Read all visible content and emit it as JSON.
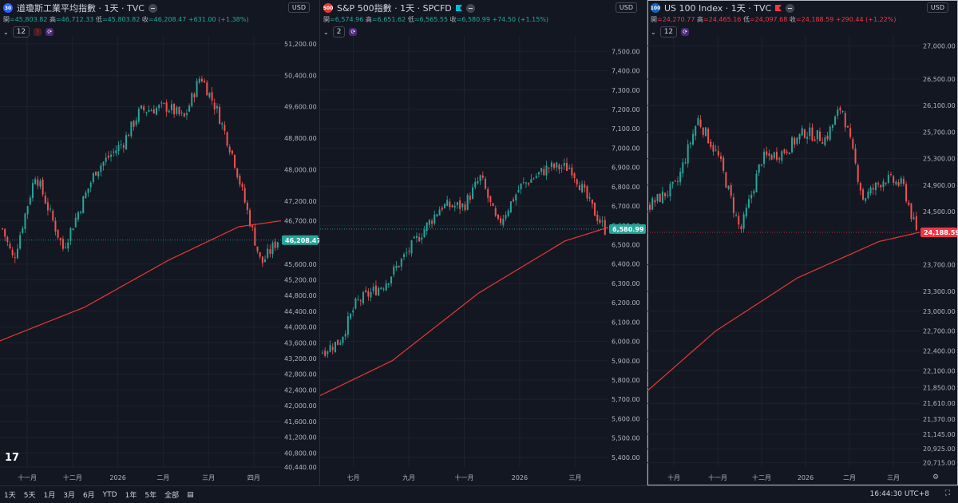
{
  "panes": [
    {
      "title": "道瓊斯工業平均指數 · 1天 · TVC",
      "logo_text": "30",
      "logo_color": "#2962ff",
      "ohlc": {
        "o_label": "開",
        "o": "45,803.82",
        "h_label": "高",
        "h": "46,712.33",
        "l_label": "低",
        "l": "45,803.82",
        "c_label": "收",
        "c": "46,208.47",
        "change": "+631.00 (+1.38%)"
      },
      "ohlc_color": "#26a69a",
      "indicator_count": "12",
      "currency": "USD",
      "last_price": "46,208.47",
      "last_color": "#26a69a",
      "y_ticks": [
        "51,200.00",
        "50,400.00",
        "49,600.00",
        "48,800.00",
        "48,000.00",
        "47,200.00",
        "46,700.00",
        "46,208.47",
        "45,600.00",
        "45,200.00",
        "44,800.00",
        "44,400.00",
        "44,000.00",
        "43,600.00",
        "43,200.00",
        "42,800.00",
        "42,400.00",
        "42,000.00",
        "41,600.00",
        "41,200.00",
        "40,800.00",
        "40,440.00"
      ],
      "x_ticks": [
        "十一月",
        "十二月",
        "2026",
        "二月",
        "三月",
        "四月"
      ]
    },
    {
      "title": "S&P 500指數 · 1天 · SPCFD",
      "logo_text": "500",
      "logo_color": "#e53935",
      "ohlc": {
        "o_label": "開",
        "o": "6,574.96",
        "h_label": "高",
        "h": "6,651.62",
        "l_label": "低",
        "l": "6,565.55",
        "c_label": "收",
        "c": "6,580.99",
        "change": "+74.50 (+1.15%)"
      },
      "ohlc_color": "#26a69a",
      "indicator_count": "2",
      "currency": "USD",
      "last_price": "6,580.99",
      "last_color": "#26a69a",
      "y_ticks": [
        "7,500.00",
        "7,400.00",
        "7,300.00",
        "7,200.00",
        "7,100.00",
        "7,000.00",
        "6,900.00",
        "6,800.00",
        "6,700.00",
        "6,600.00",
        "6,500.00",
        "6,400.00",
        "6,300.00",
        "6,200.00",
        "6,100.00",
        "6,000.00",
        "5,900.00",
        "5,800.00",
        "5,700.00",
        "5,600.00",
        "5,500.00",
        "5,400.00"
      ],
      "x_ticks": [
        "七月",
        "九月",
        "十一月",
        "2026",
        "三月"
      ]
    },
    {
      "title": "US 100 Index · 1天 · TVC",
      "logo_text": "100",
      "logo_color": "#1565c0",
      "ohlc": {
        "o_label": "開",
        "o": "24,270.77",
        "h_label": "高",
        "h": "24,465.16",
        "l_label": "低",
        "l": "24,097.68",
        "c_label": "收",
        "c": "24,188.59",
        "change": "+290.44 (+1.22%)"
      },
      "ohlc_color": "#f23645",
      "indicator_count": "12",
      "currency": "USD",
      "last_price": "24,188.59",
      "last_color": "#f23645",
      "y_ticks": [
        "27,000.00",
        "26,500.00",
        "26,100.00",
        "25,700.00",
        "25,300.00",
        "24,900.00",
        "24,500.00",
        "24,188.59",
        "23,700.00",
        "23,300.00",
        "23,000.00",
        "22,700.00",
        "22,400.00",
        "22,100.00",
        "21,850.00",
        "21,610.00",
        "21,370.00",
        "21,145.00",
        "20,925.00",
        "20,715.00"
      ],
      "x_ticks": [
        "十月",
        "十一月",
        "十二月",
        "2026",
        "二月",
        "三月"
      ]
    }
  ],
  "chart_data": [
    {
      "type": "candlestick",
      "title": "道瓊斯工業平均指數 · 1天 · TVC",
      "ylim": [
        40440,
        51400
      ],
      "last": 46208.47,
      "ma_end": 46700,
      "keypoints": [
        [
          0,
          46500
        ],
        [
          0.04,
          45700
        ],
        [
          0.12,
          47900
        ],
        [
          0.22,
          46000
        ],
        [
          0.34,
          48000
        ],
        [
          0.44,
          48700
        ],
        [
          0.5,
          49500
        ],
        [
          0.6,
          49600
        ],
        [
          0.66,
          49300
        ],
        [
          0.72,
          50400
        ],
        [
          0.78,
          49500
        ],
        [
          0.84,
          48300
        ],
        [
          0.88,
          47200
        ],
        [
          0.94,
          45600
        ],
        [
          1.0,
          46208
        ]
      ],
      "ma": [
        [
          0,
          43650
        ],
        [
          0.3,
          44500
        ],
        [
          0.6,
          45700
        ],
        [
          0.85,
          46550
        ],
        [
          1.0,
          46700
        ]
      ],
      "x_ticks": [
        "十一月",
        "十二月",
        "2026",
        "二月",
        "三月",
        "四月"
      ]
    },
    {
      "type": "candlestick",
      "title": "S&P 500指數 · 1天 · SPCFD",
      "ylim": [
        5350,
        7580
      ],
      "last": 6580.99,
      "keypoints": [
        [
          0,
          5950
        ],
        [
          0.06,
          6000
        ],
        [
          0.12,
          6200
        ],
        [
          0.22,
          6300
        ],
        [
          0.32,
          6500
        ],
        [
          0.42,
          6700
        ],
        [
          0.5,
          6700
        ],
        [
          0.56,
          6850
        ],
        [
          0.62,
          6600
        ],
        [
          0.7,
          6800
        ],
        [
          0.8,
          6900
        ],
        [
          0.88,
          6900
        ],
        [
          0.95,
          6700
        ],
        [
          1.0,
          6580
        ]
      ],
      "ma": [
        [
          0,
          5720
        ],
        [
          0.25,
          5900
        ],
        [
          0.55,
          6250
        ],
        [
          0.85,
          6520
        ],
        [
          1.0,
          6590
        ]
      ],
      "x_ticks": [
        "七月",
        "九月",
        "十一月",
        "2026",
        "三月"
      ]
    },
    {
      "type": "candlestick",
      "title": "US 100 Index · 1天 · TVC",
      "ylim": [
        20650,
        27150
      ],
      "last": 24188.59,
      "keypoints": [
        [
          0,
          24600
        ],
        [
          0.1,
          24900
        ],
        [
          0.18,
          25900
        ],
        [
          0.26,
          25300
        ],
        [
          0.34,
          24200
        ],
        [
          0.42,
          25300
        ],
        [
          0.5,
          25400
        ],
        [
          0.58,
          25700
        ],
        [
          0.66,
          25600
        ],
        [
          0.72,
          26100
        ],
        [
          0.8,
          24700
        ],
        [
          0.88,
          25000
        ],
        [
          0.95,
          24900
        ],
        [
          1.0,
          24188
        ]
      ],
      "ma": [
        [
          0,
          21800
        ],
        [
          0.25,
          22700
        ],
        [
          0.55,
          23500
        ],
        [
          0.85,
          24050
        ],
        [
          1.0,
          24190
        ]
      ],
      "x_ticks": [
        "十月",
        "十一月",
        "十二月",
        "2026",
        "二月",
        "三月"
      ]
    }
  ],
  "bottom": {
    "ranges": [
      "1天",
      "5天",
      "1月",
      "3月",
      "6月",
      "YTD",
      "1年",
      "5年",
      "全部"
    ],
    "clock": "16:44:30 UTC+8"
  }
}
